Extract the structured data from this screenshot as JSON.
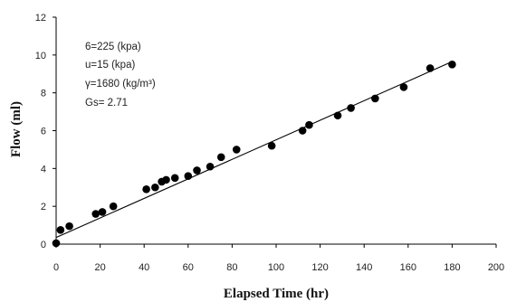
{
  "chart_data": {
    "type": "scatter",
    "xlabel": "Elapsed Time (hr)",
    "ylabel": "Flow (ml)",
    "xlim": [
      0,
      200
    ],
    "ylim": [
      0,
      12
    ],
    "xticks": [
      "0",
      "20",
      "40",
      "60",
      "80",
      "100",
      "120",
      "140",
      "160",
      "180",
      "200"
    ],
    "yticks": [
      "0",
      "2",
      "4",
      "6",
      "8",
      "10",
      "12"
    ],
    "grid": false,
    "legend": "none",
    "annotations": [
      "6=225 (kpa)",
      "u=15 (kpa)",
      "γ=1680 (kg/m³)",
      "Gs= 2.71"
    ],
    "series": [
      {
        "x": [
          0,
          2,
          6,
          18,
          21,
          26,
          41,
          45,
          48,
          50,
          54,
          60,
          64,
          70,
          75,
          82,
          98,
          112,
          115,
          128,
          134,
          145,
          158,
          170,
          180
        ],
        "y": [
          0.05,
          0.75,
          0.95,
          1.6,
          1.7,
          2.0,
          2.9,
          3.0,
          3.3,
          3.4,
          3.5,
          3.6,
          3.9,
          4.1,
          4.6,
          5.0,
          5.2,
          6.0,
          6.3,
          6.8,
          7.2,
          7.7,
          8.3,
          9.3,
          9.5
        ]
      }
    ],
    "trendline": {
      "x": [
        0,
        180
      ],
      "y": [
        0.35,
        9.65
      ]
    },
    "colors": {
      "marker": "#000000",
      "line": "#000000",
      "axis": "#000000"
    }
  }
}
